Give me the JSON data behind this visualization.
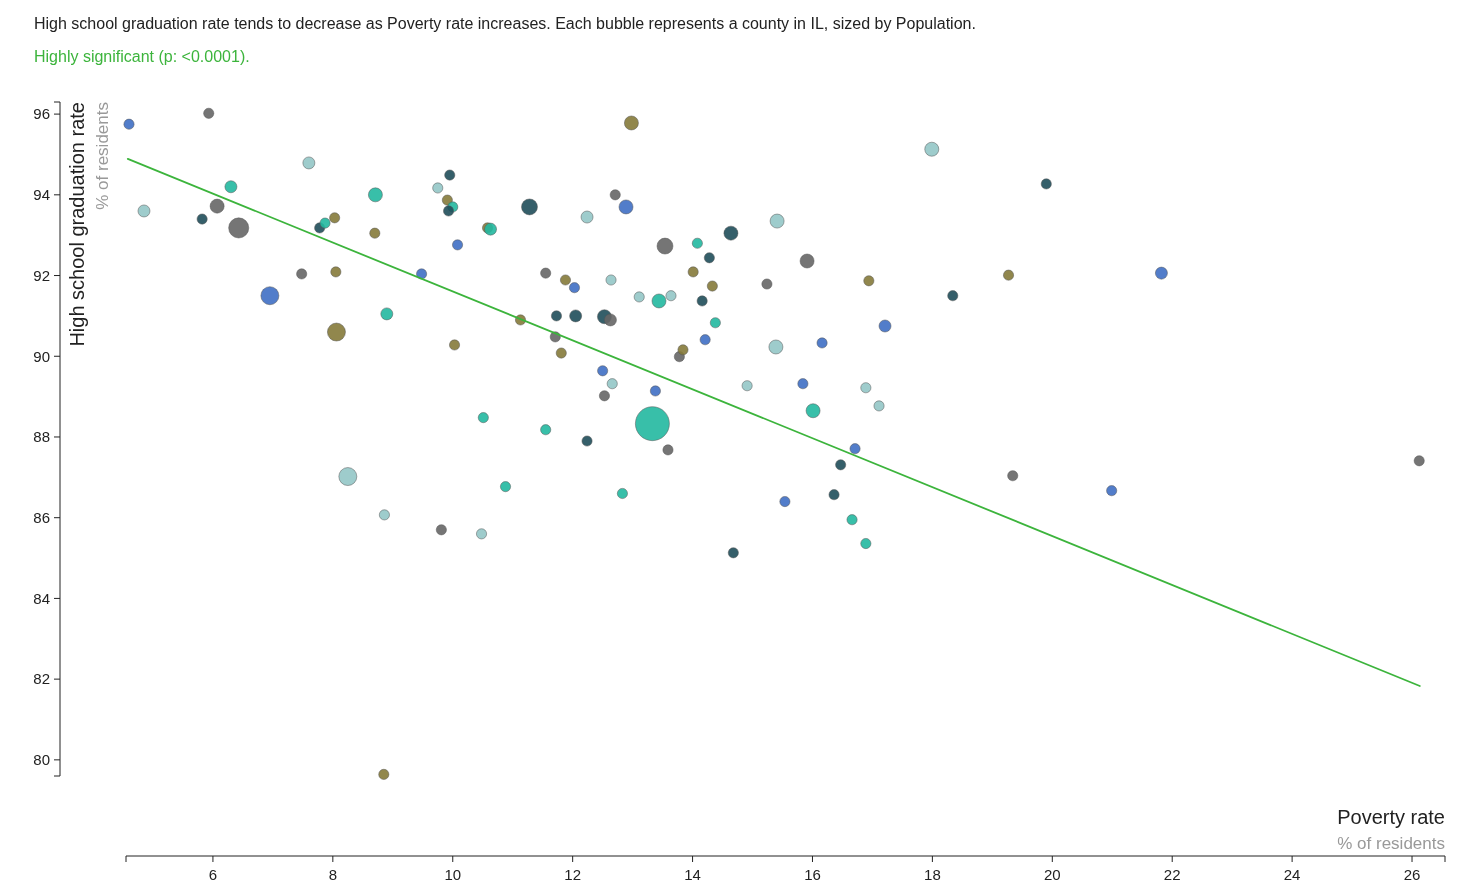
{
  "chart_data": {
    "type": "bubble",
    "title": "High school graduation rate tends to decrease as Poverty rate increases. Each bubble represents a county in IL, sized by Population.",
    "subtitle": "Highly significant (p: <0.0001).",
    "xlabel": "Poverty rate\n% of residents",
    "ylabel": "High school graduation rate\n% of residents",
    "xlim": [
      4.55,
      26.55
    ],
    "xticks": [
      6,
      8,
      10,
      12,
      14,
      16,
      18,
      20,
      22,
      24,
      26
    ],
    "ylim": [
      79.6,
      96.3
    ],
    "yticks": [
      80,
      82,
      84,
      86,
      88,
      90,
      92,
      94,
      96
    ],
    "grid": false,
    "series": [
      {
        "x": [
          4.6,
          5.93,
          4.85,
          5.82,
          6.07,
          6.3,
          6.43,
          6.95,
          7.48,
          7.6,
          7.78,
          7.87,
          8.03,
          8.05,
          8.06,
          8.25,
          8.71,
          8.7,
          8.9,
          8.86,
          8.85,
          9.48,
          9.75,
          9.91,
          9.95,
          10.0,
          9.93,
          10.08,
          10.03,
          9.81,
          10.51,
          10.48,
          10.58,
          10.63,
          10.88,
          11.13,
          11.28,
          11.55,
          11.55,
          11.71,
          11.73,
          11.81,
          11.88,
          12.03,
          12.05,
          12.24,
          12.24,
          12.5,
          12.53,
          12.63,
          12.53,
          12.64,
          12.66,
          12.71,
          12.89,
          12.83,
          12.98,
          13.11,
          13.33,
          13.38,
          13.44,
          13.54,
          13.64,
          13.59,
          13.78,
          13.84,
          14.01,
          14.08,
          14.16,
          14.28,
          14.33,
          14.21,
          14.38,
          14.64,
          14.68,
          14.91,
          15.24,
          15.41,
          15.39,
          15.54,
          15.84,
          15.91,
          16.01,
          16.16,
          16.36,
          16.47,
          16.66,
          16.71,
          16.89,
          16.89,
          16.94,
          17.11,
          17.21,
          17.99,
          18.34,
          19.27,
          19.34,
          19.9,
          20.99,
          21.82,
          26.12
        ],
        "values": [
          95.75,
          96.02,
          93.6,
          93.4,
          93.72,
          94.2,
          93.18,
          91.5,
          92.04,
          94.79,
          93.18,
          93.3,
          93.43,
          92.09,
          90.6,
          87.02,
          94.0,
          93.05,
          91.05,
          86.07,
          79.64,
          92.04,
          94.17,
          93.87,
          94.49,
          93.7,
          93.6,
          92.76,
          90.28,
          85.7,
          88.48,
          85.6,
          93.18,
          93.15,
          86.77,
          90.9,
          93.7,
          92.06,
          88.18,
          90.48,
          91.0,
          90.08,
          91.89,
          91.7,
          91.0,
          93.45,
          87.9,
          89.64,
          90.98,
          90.9,
          89.02,
          91.89,
          89.32,
          94.0,
          93.7,
          86.6,
          95.78,
          91.47,
          88.33,
          89.14,
          91.37,
          92.73,
          91.5,
          87.68,
          89.99,
          90.16,
          92.09,
          92.8,
          91.37,
          92.44,
          91.74,
          90.41,
          90.83,
          93.05,
          85.13,
          89.27,
          91.79,
          93.35,
          90.23,
          86.4,
          89.32,
          92.36,
          88.65,
          90.33,
          86.57,
          87.31,
          85.95,
          87.71,
          89.22,
          85.36,
          91.87,
          88.77,
          90.75,
          95.13,
          91.5,
          92.01,
          87.04,
          94.27,
          86.67,
          92.06,
          87.41
        ],
        "sizes": [
          0.09,
          0.09,
          0.125,
          0.09,
          0.17,
          0.125,
          0.35,
          0.28,
          0.09,
          0.125,
          0.09,
          0.09,
          0.09,
          0.09,
          0.28,
          0.28,
          0.17,
          0.09,
          0.125,
          0.09,
          0.09,
          0.09,
          0.09,
          0.09,
          0.09,
          0.09,
          0.09,
          0.09,
          0.09,
          0.09,
          0.09,
          0.09,
          0.09,
          0.125,
          0.09,
          0.09,
          0.22,
          0.09,
          0.09,
          0.09,
          0.09,
          0.09,
          0.09,
          0.09,
          0.125,
          0.125,
          0.09,
          0.09,
          0.17,
          0.125,
          0.09,
          0.09,
          0.09,
          0.09,
          0.17,
          0.09,
          0.17,
          0.09,
          1,
          0.09,
          0.17,
          0.22,
          0.09,
          0.09,
          0.09,
          0.09,
          0.09,
          0.09,
          0.09,
          0.09,
          0.09,
          0.09,
          0.09,
          0.17,
          0.09,
          0.09,
          0.09,
          0.17,
          0.17,
          0.09,
          0.09,
          0.17,
          0.17,
          0.09,
          0.09,
          0.09,
          0.09,
          0.09,
          0.09,
          0.09,
          0.09,
          0.09,
          0.125,
          0.17,
          0.09,
          0.09,
          0.09,
          0.09,
          0.09,
          0.125,
          0.09
        ],
        "colors": [
          "#3f6fc4",
          "#666666",
          "#93c7c7",
          "#1f4e5a",
          "#666666",
          "#22b8a0",
          "#666666",
          "#3f6fc4",
          "#666666",
          "#93c7c7",
          "#1f4e5a",
          "#22b8a0",
          "#857a3a",
          "#857a3a",
          "#857a3a",
          "#93c7c7",
          "#22b8a0",
          "#857a3a",
          "#22b8a0",
          "#93c7c7",
          "#857a3a",
          "#3f6fc4",
          "#93c7c7",
          "#857a3a",
          "#1f4e5a",
          "#22b8a0",
          "#1f4e5a",
          "#3f6fc4",
          "#857a3a",
          "#666666",
          "#22b8a0",
          "#93c7c7",
          "#857a3a",
          "#22b8a0",
          "#22b8a0",
          "#857a3a",
          "#1f4e5a",
          "#666666",
          "#22b8a0",
          "#666666",
          "#1f4e5a",
          "#857a3a",
          "#857a3a",
          "#3f6fc4",
          "#1f4e5a",
          "#93c7c7",
          "#1f4e5a",
          "#3f6fc4",
          "#1f4e5a",
          "#666666",
          "#666666",
          "#93c7c7",
          "#93c7c7",
          "#666666",
          "#3f6fc4",
          "#22b8a0",
          "#857a3a",
          "#93c7c7",
          "#22b8a0",
          "#3f6fc4",
          "#22b8a0",
          "#666666",
          "#93c7c7",
          "#666666",
          "#666666",
          "#857a3a",
          "#857a3a",
          "#22b8a0",
          "#1f4e5a",
          "#1f4e5a",
          "#857a3a",
          "#3f6fc4",
          "#22b8a0",
          "#1f4e5a",
          "#1f4e5a",
          "#93c7c7",
          "#666666",
          "#93c7c7",
          "#93c7c7",
          "#3f6fc4",
          "#3f6fc4",
          "#666666",
          "#22b8a0",
          "#3f6fc4",
          "#1f4e5a",
          "#1f4e5a",
          "#22b8a0",
          "#3f6fc4",
          "#93c7c7",
          "#22b8a0",
          "#857a3a",
          "#93c7c7",
          "#3f6fc4",
          "#93c7c7",
          "#1f4e5a",
          "#857a3a",
          "#666666",
          "#1f4e5a",
          "#3f6fc4",
          "#3f6fc4",
          "#666666"
        ]
      },
      {
        "type": "line",
        "x": [
          4.58,
          26.13
        ],
        "values": [
          94.89,
          81.83
        ],
        "color": "#3cb43c"
      }
    ]
  }
}
